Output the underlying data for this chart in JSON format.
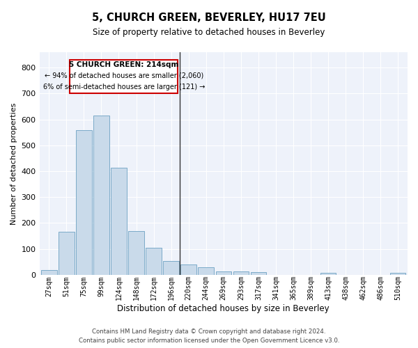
{
  "title": "5, CHURCH GREEN, BEVERLEY, HU17 7EU",
  "subtitle": "Size of property relative to detached houses in Beverley",
  "xlabel": "Distribution of detached houses by size in Beverley",
  "ylabel": "Number of detached properties",
  "bar_color": "#c9daea",
  "bar_edge_color": "#7aaac8",
  "background_color": "#eef2fa",
  "grid_color": "#ffffff",
  "fig_color": "#ffffff",
  "categories": [
    "27sqm",
    "51sqm",
    "75sqm",
    "99sqm",
    "124sqm",
    "148sqm",
    "172sqm",
    "196sqm",
    "220sqm",
    "244sqm",
    "269sqm",
    "293sqm",
    "317sqm",
    "341sqm",
    "365sqm",
    "389sqm",
    "413sqm",
    "438sqm",
    "462sqm",
    "486sqm",
    "510sqm"
  ],
  "values": [
    18,
    165,
    560,
    615,
    413,
    170,
    105,
    52,
    40,
    30,
    14,
    13,
    10,
    0,
    0,
    0,
    8,
    0,
    0,
    0,
    7
  ],
  "ylim": [
    0,
    860
  ],
  "yticks": [
    0,
    100,
    200,
    300,
    400,
    500,
    600,
    700,
    800
  ],
  "property_bin_index": 8,
  "annotation_title": "5 CHURCH GREEN: 214sqm",
  "annotation_line1": "← 94% of detached houses are smaller (2,060)",
  "annotation_line2": "6% of semi-detached houses are larger (121) →",
  "vline_color": "#333333",
  "annotation_box_color": "#ffffff",
  "annotation_border_color": "#cc0000",
  "footer_line1": "Contains HM Land Registry data © Crown copyright and database right 2024.",
  "footer_line2": "Contains public sector information licensed under the Open Government Licence v3.0."
}
